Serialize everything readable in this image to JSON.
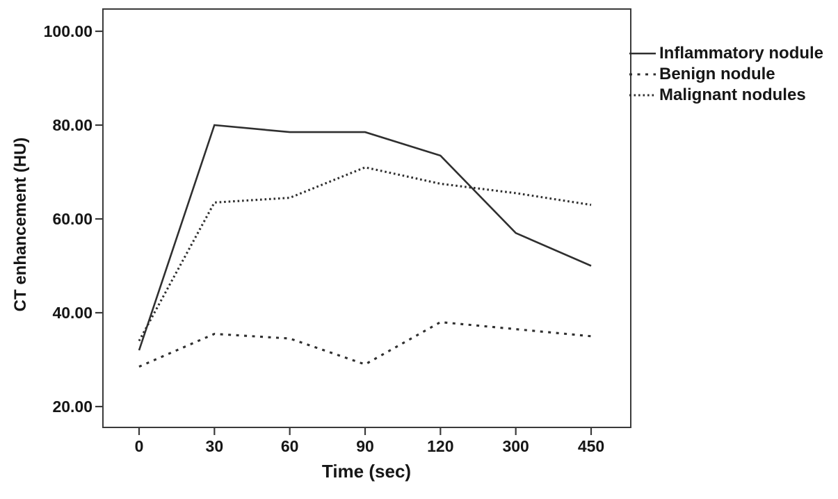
{
  "figure": {
    "background": "#ffffff",
    "text_color": "#161616",
    "line_color": "#2f2f2f",
    "frame_color": "#3a3a3a"
  },
  "chart_data": {
    "type": "line",
    "title": "",
    "xlabel": "Time (sec)",
    "ylabel": "CT enhancement (HU)",
    "categories": [
      "0",
      "30",
      "60",
      "90",
      "120",
      "300",
      "450"
    ],
    "x_unit": "sec",
    "y_unit": "HU",
    "y_ticks": {
      "labels": [
        "100.00",
        "80.00",
        "60.00",
        "40.00",
        "20.00"
      ],
      "values": [
        100,
        80,
        60,
        40,
        20
      ]
    },
    "ylim": [
      15.5,
      104.5
    ],
    "grid": false,
    "legend_position": "outside-top-right",
    "series": [
      {
        "name": "Inflammatory nodule",
        "style": "solid",
        "values": [
          32,
          80,
          78.5,
          78.5,
          73.5,
          57,
          50
        ]
      },
      {
        "name": "Benign nodule",
        "style": "dashed",
        "values": [
          28.5,
          35.5,
          34.5,
          29,
          38,
          36.5,
          35
        ]
      },
      {
        "name": "Malignant nodules",
        "style": "dotted",
        "values": [
          34,
          63.5,
          64.5,
          71,
          67.5,
          65.5,
          63
        ]
      }
    ]
  }
}
